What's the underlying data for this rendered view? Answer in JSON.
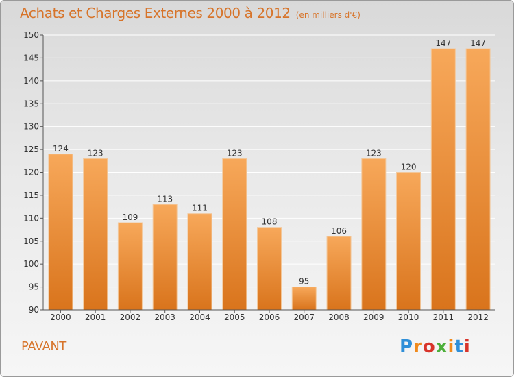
{
  "header": {
    "title": "Achats et Charges Externes 2000 à 2012",
    "unit": "(en milliers d'€)"
  },
  "footer": {
    "commune": "PAVANT",
    "brand": "Proxiti"
  },
  "colors": {
    "accent": "#d7742a",
    "bar_light": "#f7a85a",
    "bar_dark": "#d9741c",
    "logo_letters": [
      "#2f8fd8",
      "#f08a1c",
      "#d8342a",
      "#4caf3a",
      "#f08a1c",
      "#2f8fd8",
      "#d8342a"
    ]
  },
  "chart_data": {
    "type": "bar",
    "categories": [
      "2000",
      "2001",
      "2002",
      "2003",
      "2004",
      "2005",
      "2006",
      "2007",
      "2008",
      "2009",
      "2010",
      "2011",
      "2012"
    ],
    "values": [
      124,
      123,
      109,
      113,
      111,
      123,
      108,
      95,
      106,
      123,
      120,
      147,
      147
    ],
    "ylim": [
      90,
      150
    ],
    "yticks": [
      90,
      95,
      100,
      105,
      110,
      115,
      120,
      125,
      130,
      135,
      140,
      145,
      150
    ],
    "grid": true,
    "xlabel": "",
    "ylabel": ""
  }
}
